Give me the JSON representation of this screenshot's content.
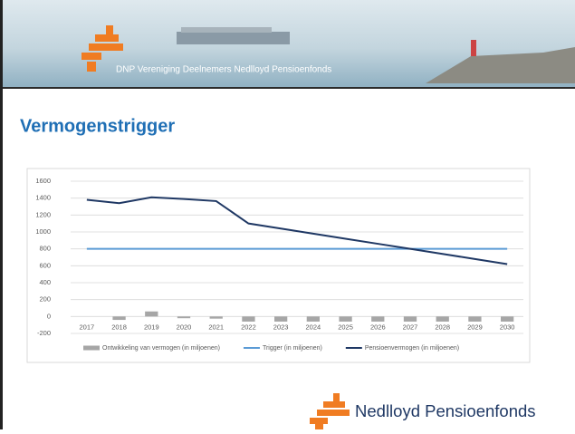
{
  "header": {
    "banner_text": "DNP Vereniging Deelnemers Nedlloyd Pensioenfonds"
  },
  "slide_title": "Vermogenstrigger",
  "footer": {
    "logo_text": "Nedlloyd Pensioenfonds"
  },
  "chart_data": {
    "type": "combo",
    "categories": [
      "2017",
      "2018",
      "2019",
      "2020",
      "2021",
      "2022",
      "2023",
      "2024",
      "2025",
      "2026",
      "2027",
      "2028",
      "2029",
      "2030"
    ],
    "series": [
      {
        "name": "Ontwikkeling van vermogen (in miljoenen)",
        "type": "bar",
        "color": "#a6a6a6",
        "values": [
          0,
          -40,
          60,
          -20,
          -25,
          -60,
          -60,
          -60,
          -60,
          -60,
          -60,
          -60,
          -60,
          -60
        ]
      },
      {
        "name": "Trigger (in miljoenen)",
        "type": "line",
        "color": "#5b9bd5",
        "values": [
          800,
          800,
          800,
          800,
          800,
          800,
          800,
          800,
          800,
          800,
          800,
          800,
          800,
          800
        ]
      },
      {
        "name": "Pensioenvermogen (in miljoenen)",
        "type": "line",
        "color": "#1f3864",
        "values": [
          1380,
          1340,
          1410,
          1390,
          1365,
          1100,
          1040,
          980,
          920,
          860,
          800,
          740,
          680,
          620
        ]
      }
    ],
    "ylim": [
      -200,
      1600
    ],
    "yticks": [
      -200,
      0,
      200,
      400,
      600,
      800,
      1000,
      1200,
      1400,
      1600
    ],
    "grid": true,
    "legend": "bottom"
  }
}
